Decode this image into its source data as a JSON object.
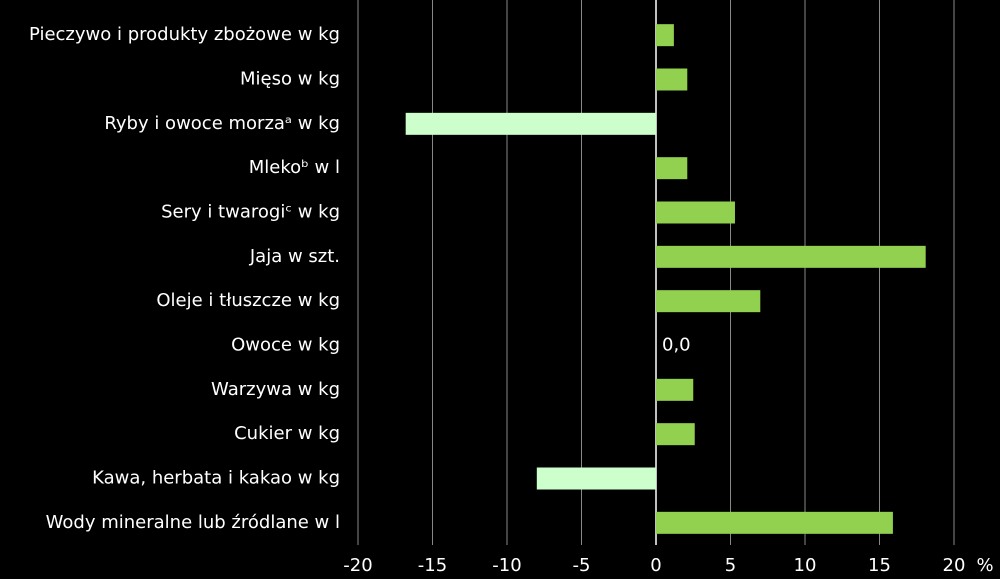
{
  "chart_data": {
    "type": "hbar",
    "categories": [
      "Pieczywo i produkty zbożowe w kg",
      "Mięso w kg",
      "Ryby i owoce morzaᵃ w kg",
      "Mlekoᵇ w l",
      "Sery i twarogiᶜ w kg",
      "Jaja w szt.",
      "Oleje i tłuszcze w kg",
      "Owoce w kg",
      "Warzywa w kg",
      "Cukier w kg",
      "Kawa, herbata i kakao w kg",
      "Wody mineralne lub źródlane w l"
    ],
    "values": [
      1.2,
      2.1,
      -16.8,
      2.1,
      5.3,
      18.1,
      7.0,
      0.0,
      2.5,
      2.6,
      -8.0,
      15.9
    ],
    "value_labels": [
      null,
      null,
      null,
      null,
      null,
      null,
      null,
      "0,0",
      null,
      null,
      null,
      null
    ],
    "color": "#92d050",
    "negative_color": "#ccffcc",
    "xlabel": "%",
    "xlim": [
      -20,
      20
    ],
    "xticks": [
      -20,
      -15,
      -10,
      -5,
      0,
      5,
      10,
      15,
      20
    ],
    "grid": true
  }
}
